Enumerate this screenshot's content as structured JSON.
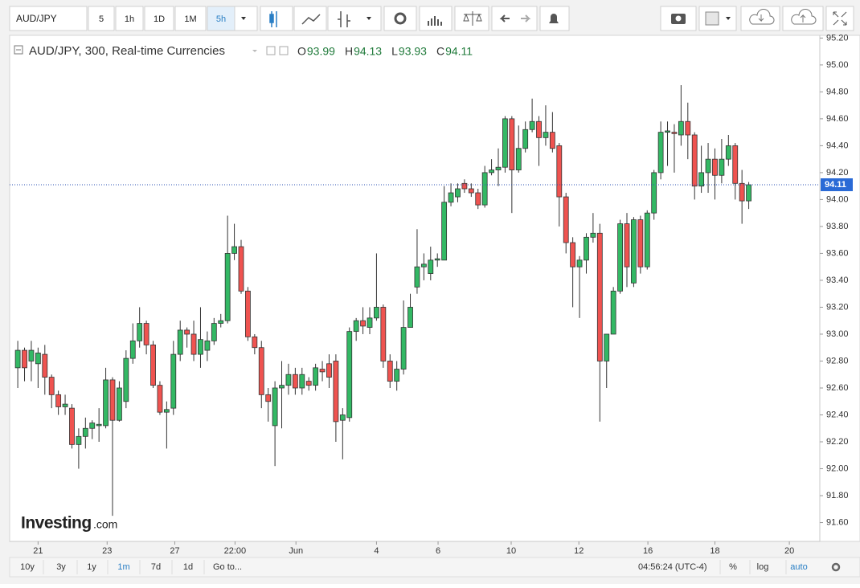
{
  "toolbar": {
    "symbol": "AUD/JPY",
    "intervals": [
      "5",
      "1h",
      "1D",
      "1M",
      "5h"
    ],
    "active_interval": 4
  },
  "chart_data": {
    "type": "candlestick",
    "series": [
      {
        "name": "AUD/JPY, 300, Real-time Currencies",
        "up_color": "#33b864",
        "down_color": "#ef5350",
        "open": [
          92.75,
          92.88,
          92.8,
          92.78,
          92.85,
          92.68,
          92.55,
          92.46,
          92.45,
          92.18,
          92.24,
          92.3,
          92.32,
          92.32,
          92.66,
          92.36,
          92.5,
          92.82,
          92.95,
          93.08,
          92.92,
          92.62,
          92.42,
          92.45,
          92.85,
          93.03,
          93.0,
          92.85,
          92.88,
          92.95,
          93.08,
          93.1,
          93.6,
          93.65,
          93.32,
          92.98,
          92.9,
          92.55,
          92.32,
          92.6,
          92.62,
          92.7,
          92.6,
          92.65,
          92.62,
          92.74,
          92.78,
          92.8,
          92.36,
          92.38,
          93.02,
          93.1,
          93.05,
          93.12,
          93.2,
          92.8,
          92.65,
          92.74,
          93.05,
          93.35,
          93.5,
          93.45,
          93.55,
          93.55,
          93.98,
          94.02,
          94.12,
          94.08,
          94.05,
          93.96,
          94.2,
          94.22,
          94.24,
          94.6,
          94.22,
          94.38,
          94.52,
          94.58,
          94.46,
          94.5,
          94.4,
          94.02,
          93.68,
          93.5,
          93.55,
          93.72,
          93.75,
          92.8,
          93.0,
          93.32,
          93.82,
          93.38,
          93.85,
          93.5,
          93.9,
          94.2,
          94.5,
          94.5,
          94.48,
          94.58,
          94.48,
          94.1,
          94.2,
          94.3,
          94.18,
          94.3,
          94.4,
          94.12,
          93.99
        ],
        "high": [
          92.95,
          92.9,
          92.95,
          92.9,
          92.92,
          92.7,
          92.58,
          92.55,
          92.48,
          92.3,
          92.38,
          92.36,
          92.45,
          92.75,
          92.68,
          92.65,
          92.88,
          93.08,
          93.2,
          93.1,
          92.95,
          92.65,
          92.5,
          92.95,
          93.1,
          93.05,
          93.1,
          93.2,
          93.02,
          93.12,
          93.15,
          93.88,
          93.82,
          93.7,
          93.35,
          93.0,
          92.95,
          92.6,
          92.65,
          92.8,
          92.78,
          92.75,
          92.75,
          92.68,
          92.78,
          92.8,
          92.85,
          92.85,
          92.45,
          93.05,
          93.12,
          93.2,
          93.2,
          93.6,
          93.22,
          92.85,
          92.8,
          93.25,
          93.3,
          93.78,
          93.6,
          93.65,
          93.6,
          94.1,
          94.12,
          94.12,
          94.15,
          94.12,
          94.08,
          94.25,
          94.3,
          94.38,
          94.62,
          94.62,
          94.55,
          94.58,
          94.75,
          94.62,
          94.7,
          94.65,
          94.42,
          94.05,
          93.72,
          93.58,
          93.75,
          93.9,
          93.82,
          93.0,
          93.35,
          93.85,
          93.9,
          93.87,
          93.88,
          93.92,
          94.22,
          94.58,
          94.58,
          94.56,
          94.85,
          94.72,
          94.5,
          94.4,
          94.42,
          94.38,
          94.45,
          94.48,
          94.42,
          94.22,
          94.13
        ],
        "low": [
          92.6,
          92.65,
          92.65,
          92.6,
          92.55,
          92.45,
          92.4,
          92.4,
          92.15,
          92.0,
          92.15,
          92.22,
          92.2,
          92.3,
          91.65,
          92.35,
          92.45,
          92.78,
          92.9,
          92.85,
          92.6,
          92.4,
          92.15,
          92.4,
          92.8,
          92.9,
          92.8,
          92.75,
          92.8,
          92.92,
          93.05,
          93.08,
          93.55,
          93.3,
          92.95,
          92.85,
          92.45,
          92.35,
          92.02,
          92.3,
          92.55,
          92.55,
          92.55,
          92.58,
          92.58,
          92.65,
          92.6,
          92.2,
          92.07,
          92.35,
          92.95,
          93.0,
          93.0,
          93.1,
          92.75,
          92.6,
          92.58,
          92.7,
          93.05,
          93.3,
          93.4,
          93.4,
          93.5,
          93.55,
          93.95,
          93.98,
          94.05,
          94.02,
          93.93,
          93.94,
          94.18,
          94.1,
          94.2,
          93.9,
          94.2,
          94.35,
          94.5,
          94.25,
          94.4,
          94.35,
          93.8,
          93.6,
          93.2,
          93.12,
          93.45,
          93.68,
          92.35,
          92.6,
          93.0,
          93.3,
          93.35,
          93.35,
          93.45,
          93.48,
          93.85,
          94.15,
          94.25,
          94.2,
          94.4,
          94.3,
          94.0,
          94.05,
          94.05,
          94.0,
          94.12,
          94.25,
          94.0,
          93.82,
          93.93
        ],
        "close": [
          92.88,
          92.75,
          92.88,
          92.86,
          92.68,
          92.55,
          92.46,
          92.48,
          92.18,
          92.24,
          92.3,
          92.34,
          92.33,
          92.66,
          92.36,
          92.6,
          92.82,
          92.95,
          93.08,
          92.92,
          92.62,
          92.42,
          92.44,
          92.85,
          93.03,
          93.0,
          92.85,
          92.96,
          92.95,
          93.08,
          93.1,
          93.6,
          93.65,
          93.32,
          92.98,
          92.9,
          92.55,
          92.5,
          92.6,
          92.62,
          92.7,
          92.6,
          92.7,
          92.62,
          92.75,
          92.72,
          92.68,
          92.35,
          92.4,
          93.02,
          93.1,
          93.06,
          93.12,
          93.2,
          92.8,
          92.65,
          92.74,
          93.05,
          93.2,
          93.5,
          93.52,
          93.55,
          93.56,
          93.98,
          94.05,
          94.08,
          94.08,
          94.05,
          93.96,
          94.2,
          94.22,
          94.24,
          94.6,
          94.22,
          94.38,
          94.52,
          94.58,
          94.46,
          94.5,
          94.38,
          94.02,
          93.68,
          93.5,
          93.55,
          93.72,
          93.75,
          92.8,
          93.0,
          93.32,
          93.82,
          93.5,
          93.85,
          93.5,
          93.9,
          94.2,
          94.5,
          94.51,
          94.49,
          94.58,
          94.48,
          94.1,
          94.2,
          94.3,
          94.18,
          94.3,
          94.4,
          94.12,
          93.99,
          94.11
        ]
      }
    ],
    "legend_labels": [
      "O",
      "H",
      "L",
      "C"
    ],
    "last_price": 94.11,
    "xlim": [
      -1.2,
      118.5
    ],
    "xticks": [
      {
        "value": 3,
        "label": "21"
      },
      {
        "value": 13.2,
        "label": "23"
      },
      {
        "value": 23.2,
        "label": "27"
      },
      {
        "value": 32.1,
        "label": "22:00"
      },
      {
        "value": 41.1,
        "label": "Jun"
      },
      {
        "value": 53,
        "label": "4"
      },
      {
        "value": 62.1,
        "label": "6"
      },
      {
        "value": 72.9,
        "label": "10"
      },
      {
        "value": 82.9,
        "label": "12"
      },
      {
        "value": 93.1,
        "label": "16"
      },
      {
        "value": 103,
        "label": "18"
      },
      {
        "value": 114,
        "label": "20"
      }
    ],
    "ylim": [
      91.46,
      95.22
    ],
    "yticks": [
      {
        "value": 91.6,
        "label": "91.60"
      },
      {
        "value": 91.8,
        "label": "91.80"
      },
      {
        "value": 92,
        "label": "92.00"
      },
      {
        "value": 92.2,
        "label": "92.20"
      },
      {
        "value": 92.4,
        "label": "92.40"
      },
      {
        "value": 92.6,
        "label": "92.60"
      },
      {
        "value": 92.8,
        "label": "92.80"
      },
      {
        "value": 93,
        "label": "93.00"
      },
      {
        "value": 93.2,
        "label": "93.20"
      },
      {
        "value": 93.4,
        "label": "93.40"
      },
      {
        "value": 93.6,
        "label": "93.60"
      },
      {
        "value": 93.8,
        "label": "93.80"
      },
      {
        "value": 94,
        "label": "94.00"
      },
      {
        "value": 94.2,
        "label": "94.20"
      },
      {
        "value": 94.4,
        "label": "94.40"
      },
      {
        "value": 94.6,
        "label": "94.60"
      },
      {
        "value": 94.8,
        "label": "94.80"
      },
      {
        "value": 95,
        "label": "95.00"
      },
      {
        "value": 95.2,
        "label": "95.20"
      }
    ],
    "grid": false
  },
  "watermark": {
    "brand": "Investing",
    "suffix": ".com"
  },
  "footer": {
    "ranges": [
      "10y",
      "3y",
      "1y",
      "1m",
      "7d",
      "1d"
    ],
    "active_range": 3,
    "goto": "Go to...",
    "time": "04:56:24 (UTC-4)",
    "options": [
      "%",
      "log",
      "auto"
    ]
  }
}
